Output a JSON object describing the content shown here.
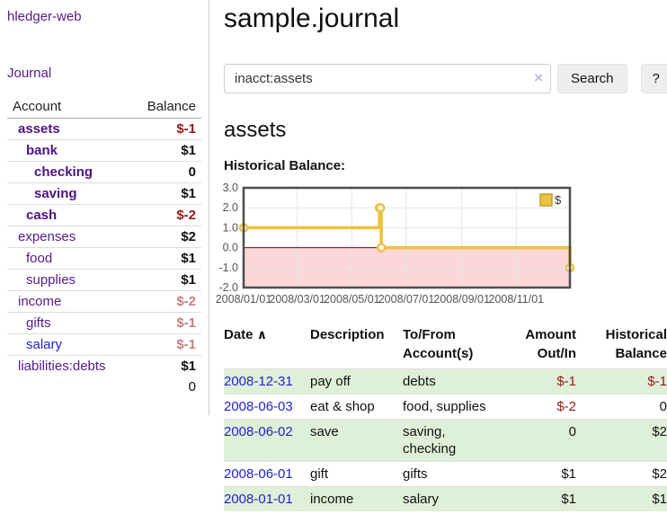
{
  "app": {
    "brand": "hledger-web",
    "nav": {
      "journal": "Journal"
    }
  },
  "sidebar": {
    "headers": {
      "account": "Account",
      "balance": "Balance"
    },
    "accounts": [
      {
        "name": "assets",
        "depth": 1,
        "balance": "$-1",
        "balance_class": "neg",
        "current": true,
        "unvisited": false
      },
      {
        "name": "bank",
        "depth": 2,
        "balance": "$1",
        "balance_class": "",
        "current": true,
        "unvisited": false
      },
      {
        "name": "checking",
        "depth": 3,
        "balance": "0",
        "balance_class": "",
        "current": true,
        "unvisited": false
      },
      {
        "name": "saving",
        "depth": 3,
        "balance": "$1",
        "balance_class": "",
        "current": true,
        "unvisited": false
      },
      {
        "name": "cash",
        "depth": 2,
        "balance": "$-2",
        "balance_class": "neg",
        "current": true,
        "unvisited": false
      },
      {
        "name": "expenses",
        "depth": 1,
        "balance": "$2",
        "balance_class": "",
        "current": false,
        "unvisited": false
      },
      {
        "name": "food",
        "depth": 2,
        "balance": "$1",
        "balance_class": "",
        "current": false,
        "unvisited": false
      },
      {
        "name": "supplies",
        "depth": 2,
        "balance": "$1",
        "balance_class": "",
        "current": false,
        "unvisited": false
      },
      {
        "name": "income",
        "depth": 1,
        "balance": "$-2",
        "balance_class": "negmuted",
        "current": false,
        "unvisited": false
      },
      {
        "name": "gifts",
        "depth": 2,
        "balance": "$-1",
        "balance_class": "negmuted",
        "current": false,
        "unvisited": false
      },
      {
        "name": "salary",
        "depth": 2,
        "balance": "$-1",
        "balance_class": "negmuted",
        "current": false,
        "unvisited": true
      },
      {
        "name": "liabilities:debts",
        "depth": 1,
        "balance": "$1",
        "balance_class": "",
        "current": false,
        "unvisited": false
      }
    ],
    "total": "0"
  },
  "main": {
    "title": "sample.journal",
    "search": {
      "value": "inacct:assets",
      "clear_icon": "×",
      "search_button": "Search",
      "help_button": "?"
    },
    "account_heading": "assets",
    "chart_heading": "Historical Balance:"
  },
  "chart_data": {
    "type": "line",
    "title": "Historical Balance:",
    "step": true,
    "series": [
      {
        "name": "$",
        "color": "#edc240",
        "points": [
          [
            "2008-01-01",
            1
          ],
          [
            "2008-06-01",
            2
          ],
          [
            "2008-06-02",
            2
          ],
          [
            "2008-06-03",
            0
          ],
          [
            "2008-12-31",
            -1
          ]
        ]
      }
    ],
    "ylim": [
      -2.0,
      3.0
    ],
    "yticks": [
      3.0,
      2.0,
      1.0,
      0.0,
      -1.0,
      -2.0
    ],
    "xticks": [
      "2008/01/01",
      "2008/03/01",
      "2008/05/01",
      "2008/07/01",
      "2008/09/01",
      "2008/11/01"
    ],
    "x_range": [
      "2008-01-01",
      "2008-12-31"
    ],
    "grid": true,
    "legend_position": "top-right",
    "colors": {
      "negative_region": "#fbd7d7",
      "zero_line": "#8b0000",
      "border": "#4d4d4d",
      "gridline": "#e6e6e6",
      "axis_text": "#555555",
      "legend_swatch_border": "#c19e2b"
    }
  },
  "register": {
    "headers": {
      "date": "Date",
      "sort_icon": "∧",
      "description": "Description",
      "account": "To/From Account(s)",
      "amount": "Amount Out/In",
      "balance": "Historical Balance"
    },
    "rows": [
      {
        "date": "2008-12-31",
        "description": "pay off",
        "accounts_lines": [
          "debts"
        ],
        "amount": "$-1",
        "amount_neg": true,
        "balance": "$-1",
        "balance_neg": true
      },
      {
        "date": "2008-06-03",
        "description": "eat & shop",
        "accounts_lines": [
          "food, supplies"
        ],
        "amount": "$-2",
        "amount_neg": true,
        "balance": "0",
        "balance_neg": false
      },
      {
        "date": "2008-06-02",
        "description": "save",
        "accounts_lines": [
          "saving,",
          "checking"
        ],
        "amount": "0",
        "amount_neg": false,
        "balance": "$2",
        "balance_neg": false
      },
      {
        "date": "2008-06-01",
        "description": "gift",
        "accounts_lines": [
          "gifts"
        ],
        "amount": "$1",
        "amount_neg": false,
        "balance": "$2",
        "balance_neg": false
      },
      {
        "date": "2008-01-01",
        "description": "income",
        "accounts_lines": [
          "salary"
        ],
        "amount": "$1",
        "amount_neg": false,
        "balance": "$1",
        "balance_neg": false
      }
    ]
  }
}
